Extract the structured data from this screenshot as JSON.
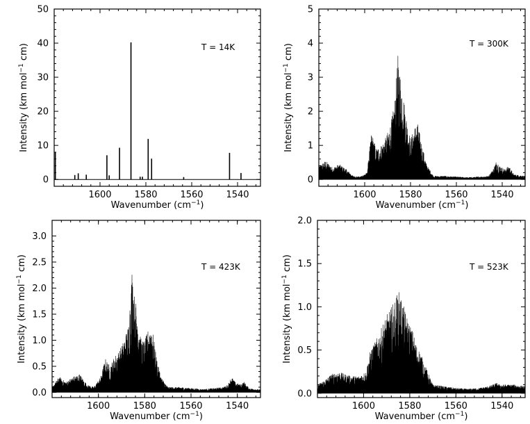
{
  "chart_data": [
    {
      "type": "bar",
      "xlabel": "Wavenumber (cm",
      "xlabel_sup": "−1",
      "xlabel_end": ")",
      "ylabel": "Intensity (km mol",
      "ylabel_sup": "−1",
      "ylabel_end": " cm)",
      "annotation": "T = 14K",
      "xlim": [
        1620,
        1530
      ],
      "ylim": [
        -2,
        50
      ],
      "xticks": [
        "1600",
        "1580",
        "1560",
        "1540"
      ],
      "yticks": [
        "0",
        "10",
        "20",
        "30",
        "40",
        "50"
      ],
      "x": [
        1619.5,
        1611,
        1609.5,
        1606,
        1597,
        1596,
        1591.5,
        1586.5,
        1582.5,
        1581.5,
        1579,
        1577.5,
        1563.5,
        1543.5,
        1538.5
      ],
      "values": [
        8.0,
        1.3,
        1.8,
        1.4,
        7.1,
        1.2,
        9.3,
        40.2,
        0.8,
        0.8,
        11.9,
        6.1,
        0.7,
        7.8,
        1.9
      ]
    },
    {
      "type": "line",
      "xlabel": "Wavenumber (cm",
      "xlabel_sup": "−1",
      "xlabel_end": ")",
      "ylabel": "Intensity (km mol",
      "ylabel_sup": "−1",
      "ylabel_end": " cm)",
      "annotation": "T = 300K",
      "xlim": [
        1620,
        1530
      ],
      "ylim": [
        -0.2,
        5
      ],
      "xticks": [
        "1600",
        "1580",
        "1560",
        "1540"
      ],
      "yticks": [
        "0",
        "1",
        "2",
        "3",
        "4",
        "5"
      ],
      "envelope_x": [
        1620,
        1617,
        1614,
        1611,
        1608,
        1605,
        1602,
        1599,
        1597,
        1595,
        1593,
        1591,
        1589,
        1587,
        1585.5,
        1584.5,
        1583,
        1581.5,
        1580,
        1578.5,
        1577,
        1575,
        1573,
        1570,
        1565,
        1560,
        1555,
        1550,
        1546,
        1544,
        1542.5,
        1541,
        1539,
        1537,
        1535,
        1530
      ],
      "envelope_y": [
        0.4,
        0.55,
        0.35,
        0.45,
        0.3,
        0.1,
        0.08,
        0.2,
        1.4,
        0.9,
        1.0,
        1.2,
        1.55,
        2.2,
        3.65,
        3.1,
        2.4,
        1.7,
        1.2,
        1.5,
        1.7,
        1.0,
        0.45,
        0.1,
        0.1,
        0.08,
        0.06,
        0.08,
        0.1,
        0.3,
        0.55,
        0.4,
        0.3,
        0.4,
        0.15,
        0.1
      ]
    },
    {
      "type": "line",
      "xlabel": "Wavenumber (cm",
      "xlabel_sup": "−1",
      "xlabel_end": ")",
      "ylabel": "Intensity (km mol",
      "ylabel_sup": "−1",
      "ylabel_end": " cm)",
      "annotation": "T = 423K",
      "xlim": [
        1620,
        1530
      ],
      "ylim": [
        -0.1,
        3.3
      ],
      "xticks": [
        "1600",
        "1580",
        "1560",
        "1540"
      ],
      "yticks": [
        "0.0",
        "0.5",
        "1.0",
        "1.5",
        "2.0",
        "2.5",
        "3.0"
      ],
      "envelope_x": [
        1620,
        1617,
        1614,
        1611,
        1608,
        1605,
        1602,
        1599,
        1597,
        1595,
        1593,
        1591,
        1589,
        1587,
        1585.5,
        1584.5,
        1583,
        1581.5,
        1580,
        1578.5,
        1577,
        1575,
        1573,
        1570,
        1565,
        1560,
        1555,
        1550,
        1546,
        1544,
        1542.5,
        1541,
        1539,
        1537,
        1535,
        1530
      ],
      "envelope_y": [
        0.1,
        0.3,
        0.2,
        0.3,
        0.35,
        0.15,
        0.1,
        0.3,
        0.65,
        0.5,
        0.7,
        0.8,
        1.0,
        1.3,
        2.35,
        1.9,
        1.5,
        1.0,
        1.0,
        1.2,
        1.3,
        0.7,
        0.3,
        0.1,
        0.1,
        0.08,
        0.06,
        0.08,
        0.1,
        0.15,
        0.3,
        0.2,
        0.15,
        0.2,
        0.08,
        0.05
      ]
    },
    {
      "type": "line",
      "xlabel": "Wavenumber (cm",
      "xlabel_sup": "−1",
      "xlabel_end": ")",
      "ylabel": "Intensity (km mol",
      "ylabel_sup": "−1",
      "ylabel_end": " cm)",
      "annotation": "T = 523K",
      "xlim": [
        1620,
        1530
      ],
      "ylim": [
        -0.05,
        2.0
      ],
      "xticks": [
        "1600",
        "1580",
        "1560",
        "1540"
      ],
      "yticks": [
        "0.0",
        "0.5",
        "1.0",
        "1.5",
        "2.0"
      ],
      "envelope_x": [
        1620,
        1617,
        1614,
        1611,
        1608,
        1605,
        1602,
        1599,
        1597,
        1595,
        1593,
        1591,
        1589,
        1587,
        1585.5,
        1584.5,
        1583,
        1581.5,
        1580,
        1578.5,
        1577,
        1575,
        1573,
        1570,
        1565,
        1560,
        1555,
        1550,
        1546,
        1544,
        1542.5,
        1541,
        1539,
        1537,
        1535,
        1530
      ],
      "envelope_y": [
        0.1,
        0.15,
        0.22,
        0.25,
        0.22,
        0.2,
        0.2,
        0.25,
        0.5,
        0.6,
        0.7,
        0.85,
        0.95,
        1.05,
        1.15,
        1.18,
        1.05,
        0.9,
        0.8,
        0.7,
        0.55,
        0.45,
        0.3,
        0.1,
        0.08,
        0.06,
        0.05,
        0.06,
        0.08,
        0.1,
        0.12,
        0.1,
        0.1,
        0.1,
        0.1,
        0.08
      ]
    }
  ]
}
